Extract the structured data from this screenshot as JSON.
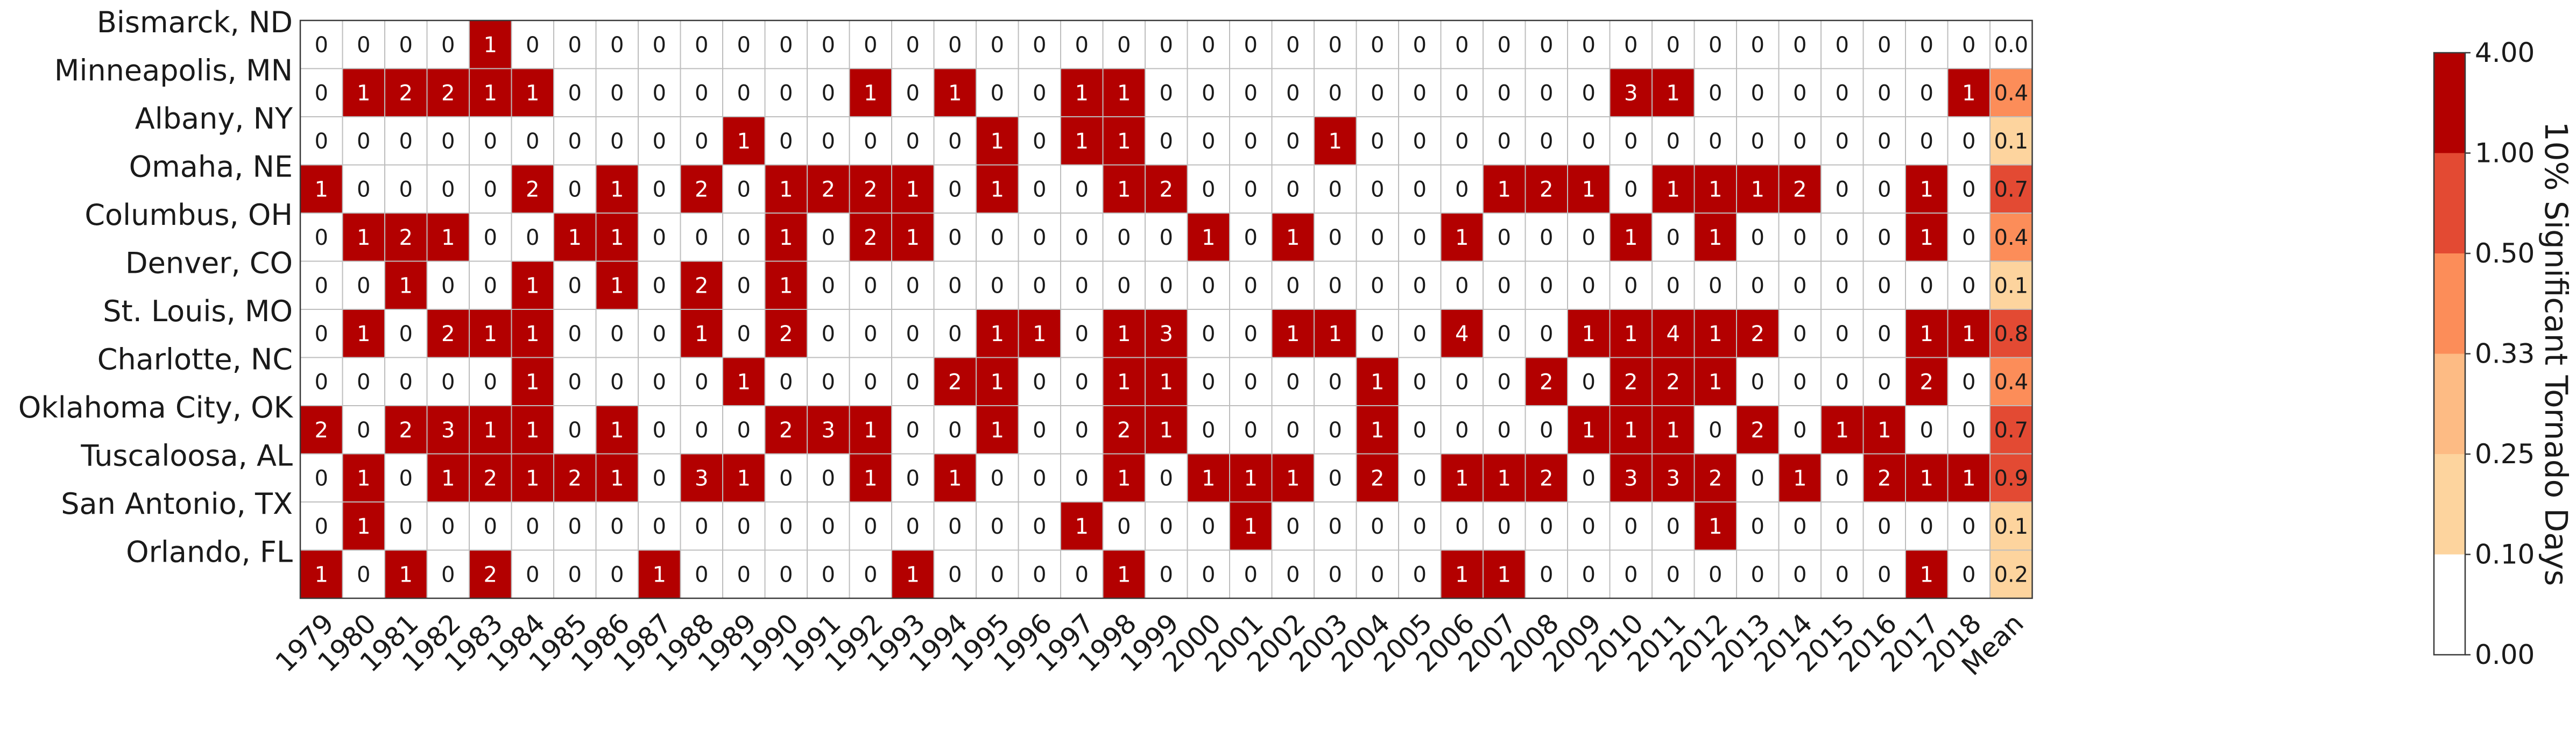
{
  "chart_data": {
    "type": "heatmap",
    "title": "",
    "xlabel": "",
    "ylabel": "",
    "rows": [
      "Bismarck, ND",
      "Minneapolis, MN",
      "Albany, NY",
      "Omaha, NE",
      "Columbus, OH",
      "Denver, CO",
      "St. Louis, MO",
      "Charlotte, NC",
      "Oklahoma City, OK",
      "Tuscaloosa, AL",
      "San Antonio, TX",
      "Orlando, FL"
    ],
    "columns": [
      "1979",
      "1980",
      "1981",
      "1982",
      "1983",
      "1984",
      "1985",
      "1986",
      "1987",
      "1988",
      "1989",
      "1990",
      "1991",
      "1992",
      "1993",
      "1994",
      "1995",
      "1996",
      "1997",
      "1998",
      "1999",
      "2000",
      "2001",
      "2002",
      "2003",
      "2004",
      "2005",
      "2006",
      "2007",
      "2008",
      "2009",
      "2010",
      "2011",
      "2012",
      "2013",
      "2014",
      "2015",
      "2016",
      "2017",
      "2018"
    ],
    "mean_label": "Mean",
    "values": [
      [
        0,
        0,
        0,
        0,
        1,
        0,
        0,
        0,
        0,
        0,
        0,
        0,
        0,
        0,
        0,
        0,
        0,
        0,
        0,
        0,
        0,
        0,
        0,
        0,
        0,
        0,
        0,
        0,
        0,
        0,
        0,
        0,
        0,
        0,
        0,
        0,
        0,
        0,
        0,
        0
      ],
      [
        0,
        1,
        2,
        2,
        1,
        1,
        0,
        0,
        0,
        0,
        0,
        0,
        0,
        1,
        0,
        1,
        0,
        0,
        1,
        1,
        0,
        0,
        0,
        0,
        0,
        0,
        0,
        0,
        0,
        0,
        0,
        3,
        1,
        0,
        0,
        0,
        0,
        0,
        0,
        1
      ],
      [
        0,
        0,
        0,
        0,
        0,
        0,
        0,
        0,
        0,
        0,
        1,
        0,
        0,
        0,
        0,
        0,
        1,
        0,
        1,
        1,
        0,
        0,
        0,
        0,
        1,
        0,
        0,
        0,
        0,
        0,
        0,
        0,
        0,
        0,
        0,
        0,
        0,
        0,
        0,
        0
      ],
      [
        1,
        0,
        0,
        0,
        0,
        2,
        0,
        1,
        0,
        2,
        0,
        1,
        2,
        2,
        1,
        0,
        1,
        0,
        0,
        1,
        2,
        0,
        0,
        0,
        0,
        0,
        0,
        0,
        1,
        2,
        1,
        0,
        1,
        1,
        1,
        2,
        0,
        0,
        1,
        0
      ],
      [
        0,
        1,
        2,
        1,
        0,
        0,
        1,
        1,
        0,
        0,
        0,
        1,
        0,
        2,
        1,
        0,
        0,
        0,
        0,
        0,
        0,
        1,
        0,
        1,
        0,
        0,
        0,
        1,
        0,
        0,
        0,
        1,
        0,
        1,
        0,
        0,
        0,
        0,
        1,
        0
      ],
      [
        0,
        0,
        1,
        0,
        0,
        1,
        0,
        1,
        0,
        2,
        0,
        1,
        0,
        0,
        0,
        0,
        0,
        0,
        0,
        0,
        0,
        0,
        0,
        0,
        0,
        0,
        0,
        0,
        0,
        0,
        0,
        0,
        0,
        0,
        0,
        0,
        0,
        0,
        0,
        0
      ],
      [
        0,
        1,
        0,
        2,
        1,
        1,
        0,
        0,
        0,
        1,
        0,
        2,
        0,
        0,
        0,
        0,
        1,
        1,
        0,
        1,
        3,
        0,
        0,
        1,
        1,
        0,
        0,
        4,
        0,
        0,
        1,
        1,
        4,
        1,
        2,
        0,
        0,
        0,
        1,
        1
      ],
      [
        0,
        0,
        0,
        0,
        0,
        1,
        0,
        0,
        0,
        0,
        1,
        0,
        0,
        0,
        0,
        2,
        1,
        0,
        0,
        1,
        1,
        0,
        0,
        0,
        0,
        1,
        0,
        0,
        0,
        2,
        0,
        2,
        2,
        1,
        0,
        0,
        0,
        0,
        2,
        0
      ],
      [
        2,
        0,
        2,
        3,
        1,
        1,
        0,
        1,
        0,
        0,
        0,
        2,
        3,
        1,
        0,
        0,
        1,
        0,
        0,
        2,
        1,
        0,
        0,
        0,
        0,
        1,
        0,
        0,
        0,
        0,
        1,
        1,
        1,
        0,
        2,
        0,
        1,
        1,
        0,
        0
      ],
      [
        0,
        1,
        0,
        1,
        2,
        1,
        2,
        1,
        0,
        3,
        1,
        0,
        0,
        1,
        0,
        1,
        0,
        0,
        0,
        1,
        0,
        1,
        1,
        1,
        0,
        2,
        0,
        1,
        1,
        2,
        0,
        3,
        3,
        2,
        0,
        1,
        0,
        2,
        1,
        1
      ],
      [
        0,
        1,
        0,
        0,
        0,
        0,
        0,
        0,
        0,
        0,
        0,
        0,
        0,
        0,
        0,
        0,
        0,
        0,
        1,
        0,
        0,
        0,
        1,
        0,
        0,
        0,
        0,
        0,
        0,
        0,
        0,
        0,
        0,
        1,
        0,
        0,
        0,
        0,
        0,
        0
      ],
      [
        1,
        0,
        1,
        0,
        2,
        0,
        0,
        0,
        1,
        0,
        0,
        0,
        0,
        0,
        1,
        0,
        0,
        0,
        0,
        1,
        0,
        0,
        0,
        0,
        0,
        0,
        0,
        1,
        1,
        0,
        0,
        0,
        0,
        0,
        0,
        0,
        0,
        0,
        1,
        0
      ]
    ],
    "means": [
      "0.0",
      "0.4",
      "0.1",
      "0.7",
      "0.4",
      "0.1",
      "0.8",
      "0.4",
      "0.7",
      "0.9",
      "0.1",
      "0.2"
    ],
    "colorbar": {
      "label": "10% Significant Tornado Days",
      "boundaries": [
        0.0,
        0.1,
        0.25,
        0.33,
        0.5,
        1.0,
        4.0
      ],
      "tick_labels": [
        "0.00",
        "0.10",
        "0.25",
        "0.33",
        "0.50",
        "1.00",
        "4.00"
      ],
      "colors": [
        "#ffffff",
        "#fdd49e",
        "#fdbb84",
        "#fc8d59",
        "#e34a33",
        "#b30000"
      ]
    },
    "grid": true
  }
}
